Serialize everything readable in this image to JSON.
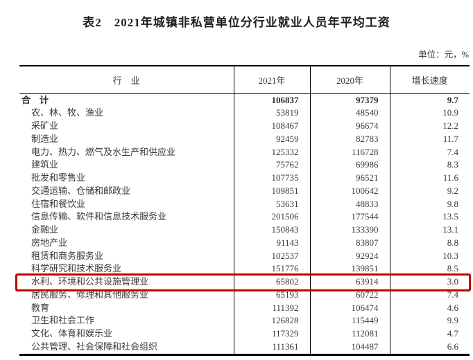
{
  "title": "表2　2021年城镇非私营单位分行业就业人员年平均工资",
  "unit_label": "单位：元，%",
  "table": {
    "columns": [
      "行　业",
      "2021年",
      "2020年",
      "增长速度"
    ],
    "highlight_row_index": 14,
    "highlight_color": "#c00000",
    "rows": [
      {
        "industry": "合　计",
        "y2021": "106837",
        "y2020": "97379",
        "growth": "9.7",
        "bold": true,
        "indent": false
      },
      {
        "industry": "农、林、牧、渔业",
        "y2021": "53819",
        "y2020": "48540",
        "growth": "10.9",
        "bold": false,
        "indent": true
      },
      {
        "industry": "采矿业",
        "y2021": "108467",
        "y2020": "96674",
        "growth": "12.2",
        "bold": false,
        "indent": true
      },
      {
        "industry": "制造业",
        "y2021": "92459",
        "y2020": "82783",
        "growth": "11.7",
        "bold": false,
        "indent": true
      },
      {
        "industry": "电力、热力、燃气及水生产和供应业",
        "y2021": "125332",
        "y2020": "116728",
        "growth": "7.4",
        "bold": false,
        "indent": true
      },
      {
        "industry": "建筑业",
        "y2021": "75762",
        "y2020": "69986",
        "growth": "8.3",
        "bold": false,
        "indent": true
      },
      {
        "industry": "批发和零售业",
        "y2021": "107735",
        "y2020": "96521",
        "growth": "11.6",
        "bold": false,
        "indent": true
      },
      {
        "industry": "交通运输、仓储和邮政业",
        "y2021": "109851",
        "y2020": "100642",
        "growth": "9.2",
        "bold": false,
        "indent": true
      },
      {
        "industry": "住宿和餐饮业",
        "y2021": "53631",
        "y2020": "48833",
        "growth": "9.8",
        "bold": false,
        "indent": true
      },
      {
        "industry": "信息传输、软件和信息技术服务业",
        "y2021": "201506",
        "y2020": "177544",
        "growth": "13.5",
        "bold": false,
        "indent": true
      },
      {
        "industry": "金融业",
        "y2021": "150843",
        "y2020": "133390",
        "growth": "13.1",
        "bold": false,
        "indent": true
      },
      {
        "industry": "房地产业",
        "y2021": "91143",
        "y2020": "83807",
        "growth": "8.8",
        "bold": false,
        "indent": true
      },
      {
        "industry": "租赁和商务服务业",
        "y2021": "102537",
        "y2020": "92924",
        "growth": "10.3",
        "bold": false,
        "indent": true
      },
      {
        "industry": "科学研究和技术服务业",
        "y2021": "151776",
        "y2020": "139851",
        "growth": "8.5",
        "bold": false,
        "indent": true
      },
      {
        "industry": "水利、环境和公共设施管理业",
        "y2021": "65802",
        "y2020": "63914",
        "growth": "3.0",
        "bold": false,
        "indent": true
      },
      {
        "industry": "居民服务、修理和其他服务业",
        "y2021": "65193",
        "y2020": "60722",
        "growth": "7.4",
        "bold": false,
        "indent": true
      },
      {
        "industry": "教育",
        "y2021": "111392",
        "y2020": "106474",
        "growth": "4.6",
        "bold": false,
        "indent": true
      },
      {
        "industry": "卫生和社会工作",
        "y2021": "126828",
        "y2020": "115449",
        "growth": "9.9",
        "bold": false,
        "indent": true
      },
      {
        "industry": "文化、体育和娱乐业",
        "y2021": "117329",
        "y2020": "112081",
        "growth": "4.7",
        "bold": false,
        "indent": true
      },
      {
        "industry": "公共管理、社会保障和社会组织",
        "y2021": "111361",
        "y2020": "104487",
        "growth": "6.6",
        "bold": false,
        "indent": true
      }
    ]
  }
}
